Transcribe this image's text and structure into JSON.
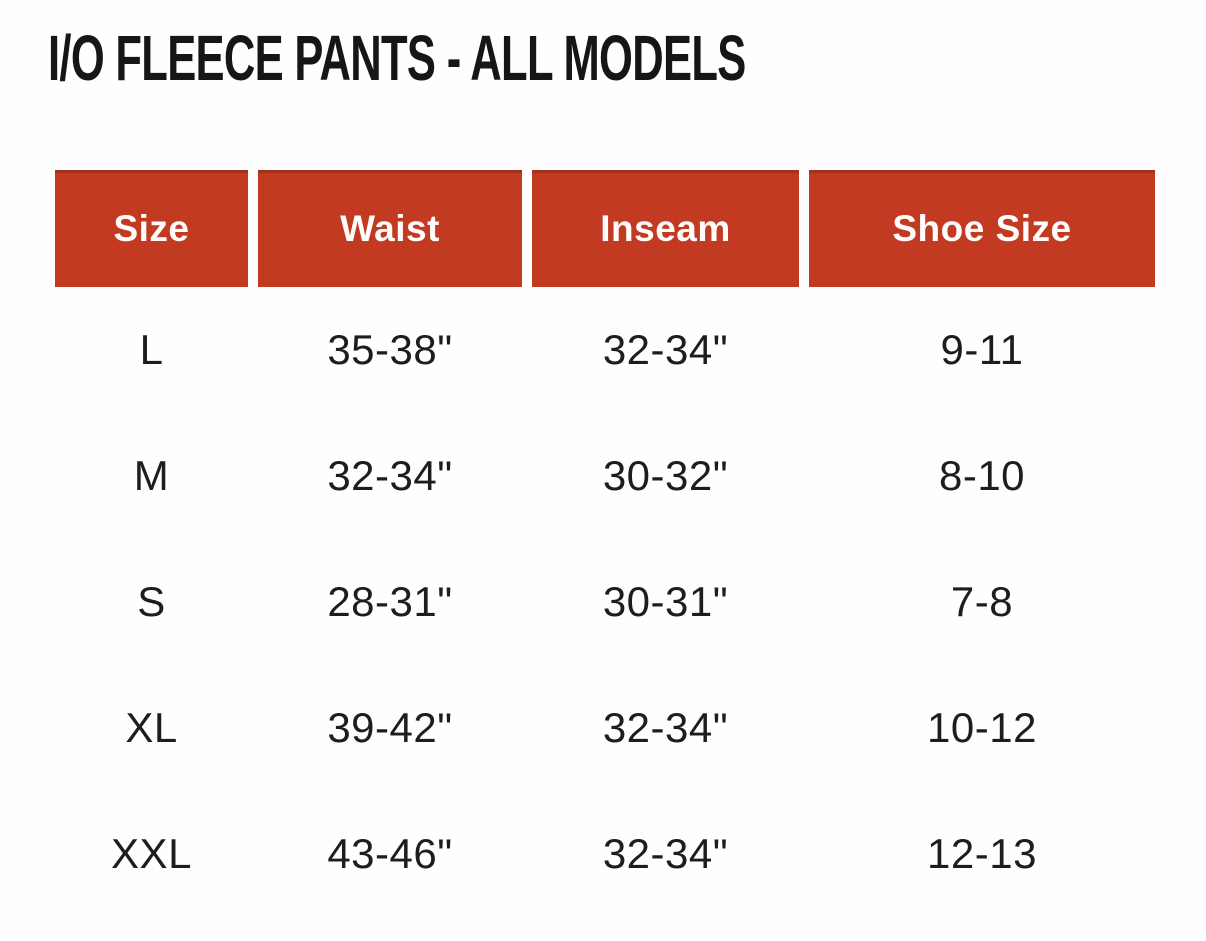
{
  "page": {
    "title": "I/O FLEECE PANTS - ALL MODELS"
  },
  "colors": {
    "header_bg": "#c23a21",
    "header_text": "#fffdfb",
    "body_text": "#1d1d1d",
    "title_text": "#161616",
    "page_bg": "#fefefe"
  },
  "table": {
    "columns": [
      "Size",
      "Waist",
      "Inseam",
      "Shoe Size"
    ],
    "rows": [
      {
        "cells": [
          "L",
          "35-38\"",
          "32-34\"",
          "9-11"
        ]
      },
      {
        "cells": [
          "M",
          "32-34\"",
          "30-32\"",
          "8-10"
        ]
      },
      {
        "cells": [
          "S",
          "28-31\"",
          "30-31\"",
          "7-8"
        ]
      },
      {
        "cells": [
          "XL",
          "39-42\"",
          "32-34\"",
          "10-12"
        ]
      },
      {
        "cells": [
          "XXL",
          "43-46\"",
          "32-34\"",
          "12-13"
        ]
      }
    ]
  },
  "chart_data": {
    "type": "table",
    "title": "I/O FLEECE PANTS - ALL MODELS",
    "columns": [
      "Size",
      "Waist",
      "Inseam",
      "Shoe Size"
    ],
    "rows": [
      [
        "L",
        "35-38\"",
        "32-34\"",
        "9-11"
      ],
      [
        "M",
        "32-34\"",
        "30-32\"",
        "8-10"
      ],
      [
        "S",
        "28-31\"",
        "30-31\"",
        "7-8"
      ],
      [
        "XL",
        "39-42\"",
        "32-34\"",
        "10-12"
      ],
      [
        "XXL",
        "43-46\"",
        "32-34\"",
        "12-13"
      ]
    ]
  }
}
